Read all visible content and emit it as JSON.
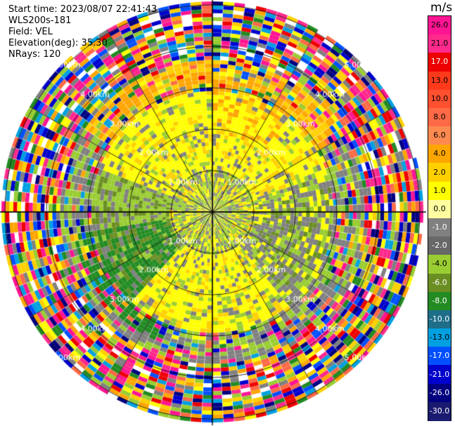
{
  "header": {
    "start_time": "Start time: 2023/08/07 22:41:43",
    "site": "WLS200s-181",
    "field": "Field: VEL",
    "elevation": "Elevation(deg): 35.30",
    "nrays": "NRays: 120"
  },
  "colorbar": {
    "unit": "m/s",
    "levels": [
      "26.0",
      "21.0",
      "17.0",
      "13.0",
      "10.0",
      "8.0",
      "6.0",
      "4.0",
      "2.0",
      "1.0",
      "0.0",
      "-1.0",
      "-2.0",
      "-4.0",
      "-6.0",
      "-8.0",
      "-10.0",
      "-13.0",
      "-17.0",
      "-21.0",
      "-26.0",
      "-30.0"
    ],
    "colors": [
      "#ff1493",
      "#ff2a8c",
      "#ee0000",
      "#ff3a1a",
      "#ff5030",
      "#ff6a46",
      "#ff8a50",
      "#ffa500",
      "#ffd000",
      "#ffff00",
      "#ffffa0",
      "#808080",
      "#686868",
      "#9acd32",
      "#6b8e23",
      "#228b22",
      "#1e6e8a",
      "#00a0e0",
      "#0050ff",
      "#0000cd",
      "#000080",
      "#1a1a70"
    ]
  },
  "chart_data": {
    "type": "heatmap",
    "projection": "PPI (plan position indicator)",
    "field": "VEL",
    "units": "m/s",
    "rays": 120,
    "range_rings_km": [
      "1.00km",
      "2.00km",
      "3.00km",
      "4.00km",
      "5.00km"
    ],
    "ring_label_text": {
      "1": "1.00km",
      "2": "2.00km",
      "3": "3.00km",
      "4": "4.00km",
      "5": "5.00km"
    },
    "ring_labels_shown": [
      "1.00km",
      "2.00km",
      "3.00km",
      "4.00km",
      "5.00km"
    ],
    "colorbar_min": -30.0,
    "colorbar_max": 26.0
  }
}
